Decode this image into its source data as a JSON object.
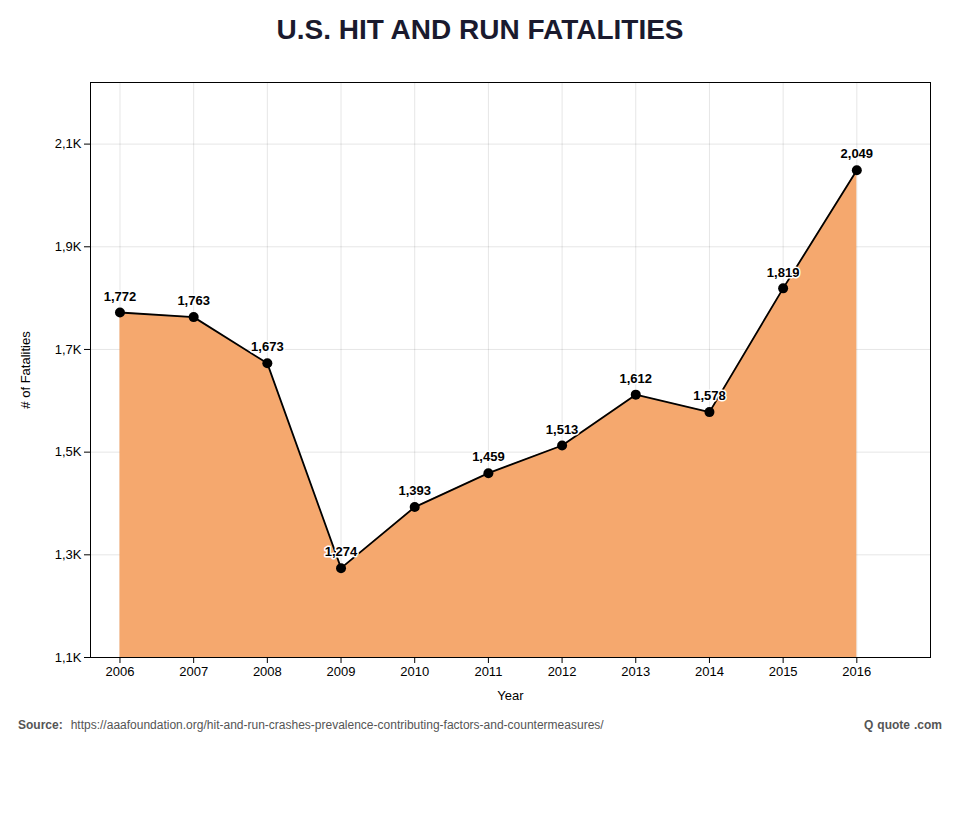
{
  "chart_data": {
    "type": "area",
    "title": "U.S. HIT AND RUN FATALITIES",
    "x_label": "Year",
    "y_label": "# of Fatalities",
    "x": [
      2006,
      2007,
      2008,
      2009,
      2010,
      2011,
      2012,
      2013,
      2014,
      2015,
      2016
    ],
    "values": [
      1772,
      1763,
      1673,
      1274,
      1393,
      1459,
      1513,
      1612,
      1578,
      1819,
      2049
    ],
    "value_labels": [
      "1,772",
      "1,763",
      "1,673",
      "1,274",
      "1,393",
      "1,459",
      "1,513",
      "1,612",
      "1,578",
      "1,819",
      "2,049"
    ],
    "data_labels": true,
    "color": "#f5a86e",
    "marker": "circle",
    "xlim": [
      2005.6,
      2017.0
    ],
    "xticks": [
      2006,
      2007,
      2008,
      2009,
      2010,
      2011,
      2012,
      2013,
      2014,
      2015,
      2016
    ],
    "ylim": [
      1100,
      2220
    ],
    "yticks": [
      {
        "value": 1100,
        "label": "1,1K"
      },
      {
        "value": 1300,
        "label": "1,3K"
      },
      {
        "value": 1500,
        "label": "1,5K"
      },
      {
        "value": 1700,
        "label": "1,7K"
      },
      {
        "value": 1900,
        "label": "1,9K"
      },
      {
        "value": 2100,
        "label": "2,1K"
      }
    ],
    "grid": true,
    "annotations": [
      "Source:",
      "https://aaafoundation.org/hit-and-run-crashes-prevalence-contributing-factors-and-countermeasures/",
      "Q",
      "quote",
      ".com"
    ]
  }
}
